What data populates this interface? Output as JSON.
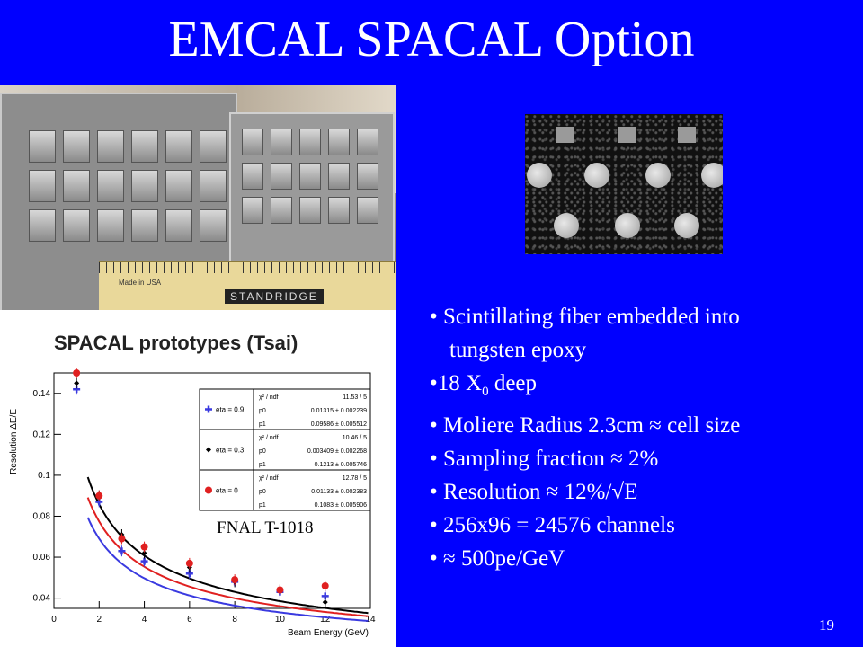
{
  "title": "EMCAL SPACAL Option",
  "photo": {
    "ruler_brand": "STANDRIDGE",
    "ruler_made": "Made in USA"
  },
  "bullets": [
    {
      "marker": "• ",
      "text": "Scintillating fiber embedded into"
    },
    {
      "marker": "",
      "text": "tungsten epoxy"
    },
    {
      "marker": "•",
      "text": "18 X",
      "sub": "0",
      "after": " deep"
    },
    {
      "marker": "• ",
      "text": "Moliere Radius 2.3cm ≈ cell size"
    },
    {
      "marker": "• ",
      "text": "Sampling fraction ≈ 2%"
    },
    {
      "marker": "• ",
      "text": "Resolution ≈ 12%/√E"
    },
    {
      "marker": "• ",
      "text": "256x96 = 24576 channels"
    },
    {
      "marker": "• ",
      "text": "≈ 500pe/GeV"
    }
  ],
  "fnal_label": "FNAL T-1018",
  "slide_number": "19",
  "chart_data": {
    "type": "scatter",
    "title": "SPACAL prototypes (Tsai)",
    "xlabel": "Beam Energy (GeV)",
    "ylabel": "Resolution ΔE/E",
    "xlim": [
      0,
      14
    ],
    "ylim": [
      0.035,
      0.15
    ],
    "x_ticks": [
      0,
      2,
      4,
      6,
      8,
      10,
      12,
      14
    ],
    "y_ticks": [
      0.04,
      0.06,
      0.08,
      0.1,
      0.12,
      0.14
    ],
    "y_tick_labels": [
      "0.04",
      "0.06",
      "0.08",
      "0.1",
      "0.12",
      "0.14"
    ],
    "series": [
      {
        "name": "eta = 0.9",
        "color": "#3a3ae0",
        "marker": "cross",
        "x": [
          1,
          2,
          3,
          4,
          6,
          8,
          10,
          12
        ],
        "y": [
          0.142,
          0.087,
          0.063,
          0.058,
          0.052,
          0.048,
          0.043,
          0.041
        ],
        "fit": {
          "chi2_ndf": "11.53 / 5",
          "p0": "0.01315 ± 0.002239",
          "p1": "0.09586 ± 0.005512",
          "a": 0.01315,
          "b": 0.09586
        }
      },
      {
        "name": "eta = 0.3",
        "color": "#000000",
        "marker": "diamond",
        "x": [
          1,
          2,
          3,
          4,
          6,
          8,
          10,
          12
        ],
        "y": [
          0.145,
          0.09,
          0.071,
          0.062,
          0.055,
          0.048,
          0.044,
          0.038
        ],
        "fit": {
          "chi2_ndf": "10.46 / 5",
          "p0": "0.003409 ± 0.002268",
          "p1": "0.1213 ± 0.005746",
          "a": 0.003409,
          "b": 0.1213
        }
      },
      {
        "name": "eta = 0",
        "color": "#e02020",
        "marker": "circle",
        "x": [
          1,
          2,
          3,
          4,
          6,
          8,
          10,
          12
        ],
        "y": [
          0.15,
          0.09,
          0.069,
          0.065,
          0.057,
          0.049,
          0.044,
          0.046
        ],
        "fit": {
          "chi2_ndf": "12.78 / 5",
          "p0": "0.01133 ± 0.002383",
          "p1": "0.1083 ± 0.005906",
          "a": 0.01133,
          "b": 0.1083
        }
      }
    ]
  }
}
